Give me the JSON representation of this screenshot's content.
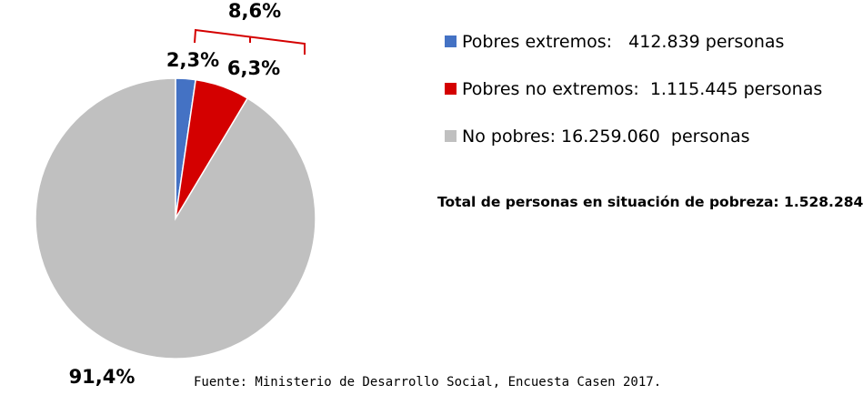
{
  "chart_data": {
    "type": "pie",
    "slices": [
      {
        "label": "Pobres extremos",
        "value": 2.3,
        "display": "2,3%",
        "color": "#4472c4"
      },
      {
        "label": "Pobres no extremos",
        "value": 6.3,
        "display": "6,3%",
        "color": "#d40000"
      },
      {
        "label": "No pobres",
        "value": 91.4,
        "display": "91,4%",
        "color": "#c0c0c0"
      }
    ],
    "group_annotation": {
      "label": "8,6%",
      "color": "#d40000",
      "covers": [
        "Pobres extremos",
        "Pobres no extremos"
      ]
    },
    "legend": [
      {
        "text": "Pobres extremos:   412.839 personas",
        "color": "#4472c4"
      },
      {
        "text": "Pobres no extremos:  1.115.445 personas",
        "color": "#d40000"
      },
      {
        "text": "No pobres: 16.259.060  personas",
        "color": "#c0c0c0"
      }
    ],
    "legend_position": "right"
  },
  "summary": {
    "total_text": "Total de personas en situación de pobreza: 1.528.284"
  },
  "source": {
    "text": "Fuente: Ministerio de Desarrollo Social, Encuesta Casen 2017."
  }
}
